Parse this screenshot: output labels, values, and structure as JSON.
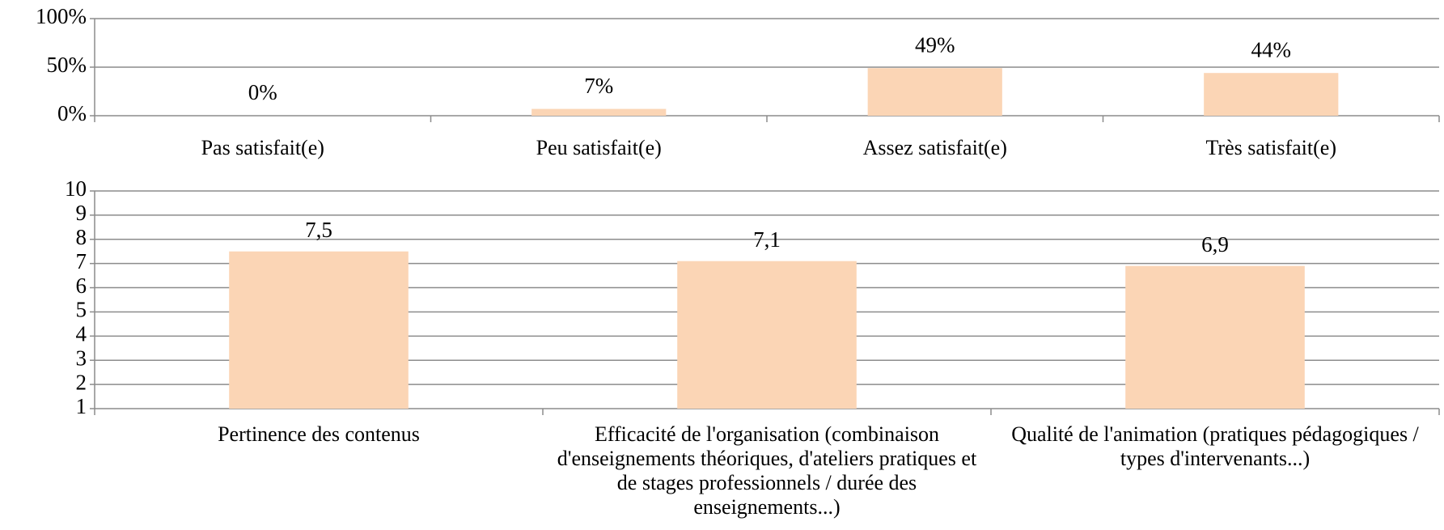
{
  "chart_data": [
    {
      "type": "bar",
      "categories": [
        "Pas satisfait(e)",
        "Peu satisfait(e)",
        "Assez satisfait(e)",
        "Très satisfait(e)"
      ],
      "values": [
        0,
        7,
        49,
        44
      ],
      "value_labels": [
        "0%",
        "7%",
        "49%",
        "44%"
      ],
      "color": "#fbd5b5",
      "ylim": [
        0,
        100
      ],
      "yticks": [
        {
          "value": 0,
          "label": "0%"
        },
        {
          "value": 50,
          "label": "50%"
        },
        {
          "value": 100,
          "label": "100%"
        }
      ],
      "grid": true
    },
    {
      "type": "bar",
      "categories": [
        "Pertinence des contenus",
        "Efficacité de l'organisation (combinaison d'enseignements théoriques, d'ateliers pratiques et de stages professionnels / durée des enseignements...)",
        "Qualité de l'animation (pratiques pédagogiques / types d'intervenants...)"
      ],
      "values": [
        7.5,
        7.1,
        6.9
      ],
      "value_labels": [
        "7,5",
        "7,1",
        "6,9"
      ],
      "color": "#fbd5b5",
      "ylim": [
        1,
        10
      ],
      "yticks": [
        1,
        2,
        3,
        4,
        5,
        6,
        7,
        8,
        9,
        10
      ],
      "grid": true
    }
  ]
}
